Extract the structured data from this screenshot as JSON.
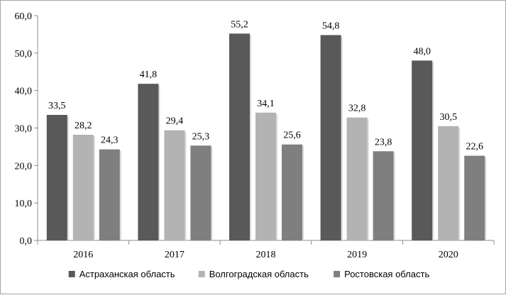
{
  "chart_data": {
    "type": "bar",
    "categories": [
      "2016",
      "2017",
      "2018",
      "2019",
      "2020"
    ],
    "series": [
      {
        "name": "Астраханская область",
        "values": [
          33.5,
          41.8,
          55.2,
          54.8,
          48.0
        ],
        "labels": [
          "33,5",
          "41,8",
          "55,2",
          "54,8",
          "48,0"
        ],
        "color": "#595959"
      },
      {
        "name": "Волгоградская область",
        "values": [
          28.2,
          29.4,
          34.1,
          32.8,
          30.5
        ],
        "labels": [
          "28,2",
          "29,4",
          "34,1",
          "32,8",
          "30,5"
        ],
        "color": "#b3b3b3"
      },
      {
        "name": "Ростовская область",
        "values": [
          24.3,
          25.3,
          25.6,
          23.8,
          22.6
        ],
        "labels": [
          "24,3",
          "25,3",
          "25,6",
          "23,8",
          "22,6"
        ],
        "color": "#7f7f7f"
      }
    ],
    "ylim": [
      0,
      60
    ],
    "yticks": [
      0,
      10,
      20,
      30,
      40,
      50,
      60
    ],
    "ytick_labels": [
      "0,0",
      "10,0",
      "20,0",
      "30,0",
      "40,0",
      "50,0",
      "60,0"
    ],
    "grid": false,
    "legend": "bottom"
  }
}
